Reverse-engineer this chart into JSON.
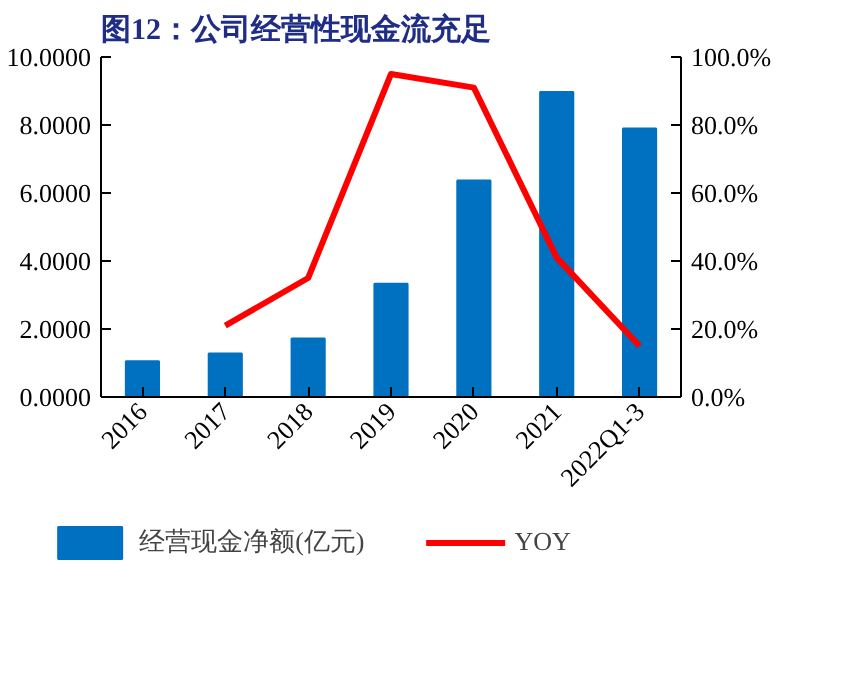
{
  "chart_data": {
    "type": "bar",
    "title": "图12：公司经营性现金流充足",
    "categories": [
      "2016",
      "2017",
      "2018",
      "2019",
      "2020",
      "2021",
      "2022Q1-3"
    ],
    "series": [
      {
        "name": "经营现金净额(亿元)",
        "color": "#0070c0",
        "type": "bar",
        "values": [
          1.05,
          1.28,
          1.72,
          3.33,
          6.37,
          8.97,
          7.9
        ]
      },
      {
        "name": "YOY",
        "color": "#ff0000",
        "type": "line",
        "axis": "y2",
        "values": [
          null,
          21,
          35,
          95,
          91,
          41,
          15
        ]
      }
    ],
    "ylim": [
      0,
      10
    ],
    "yticks": [
      {
        "value": 0,
        "label": "0.0000"
      },
      {
        "value": 2,
        "label": "2.0000"
      },
      {
        "value": 4,
        "label": "4.0000"
      },
      {
        "value": 6,
        "label": "6.0000"
      },
      {
        "value": 8,
        "label": "8.0000"
      },
      {
        "value": 10,
        "label": "10.0000"
      }
    ],
    "y2lim": [
      0,
      100
    ],
    "y2ticks": [
      {
        "value": 0,
        "label": "0.0%"
      },
      {
        "value": 20,
        "label": "20.0%"
      },
      {
        "value": 40,
        "label": "40.0%"
      },
      {
        "value": 60,
        "label": "60.0%"
      },
      {
        "value": 80,
        "label": "80.0%"
      },
      {
        "value": 100,
        "label": "100.0%"
      }
    ],
    "grid": false,
    "legend": "bottom",
    "marker": "none",
    "line_style": "solid"
  }
}
